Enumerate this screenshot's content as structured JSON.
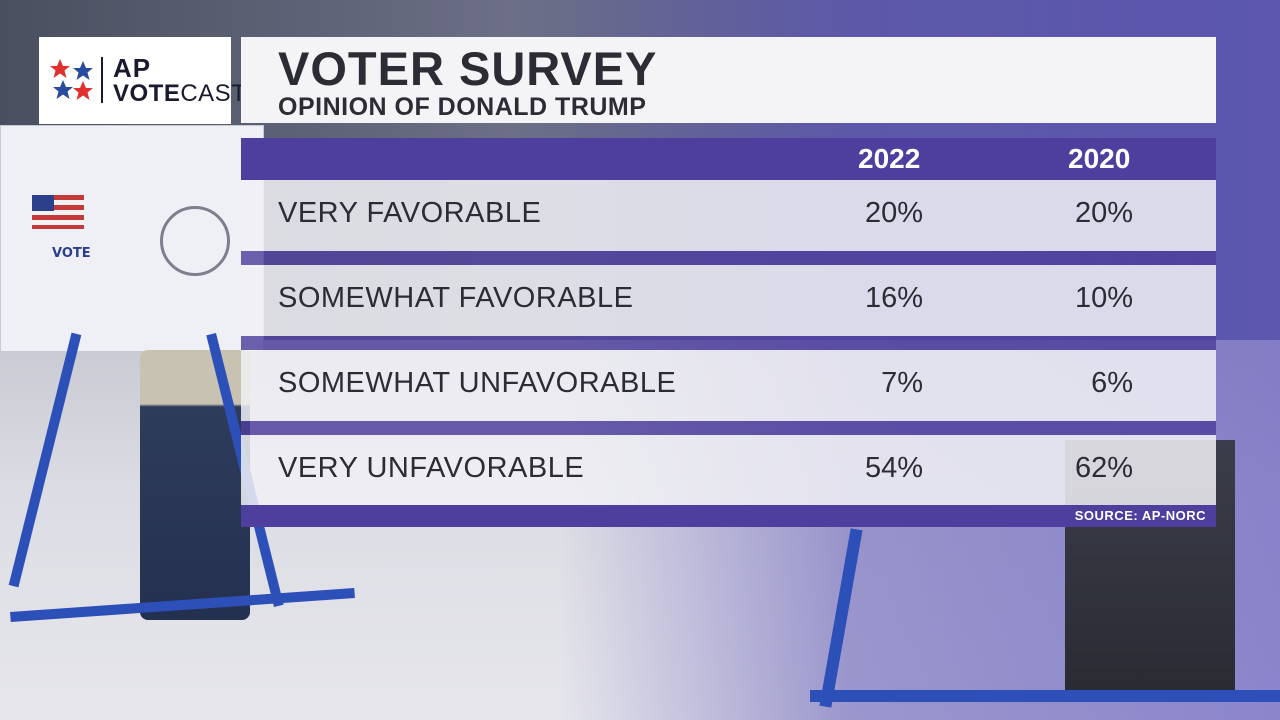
{
  "logo": {
    "line1": "AP",
    "line2_bold": "VOTE",
    "line2_rest": "CAST",
    "colors": {
      "red": "#e0312f",
      "blue": "#2a4a9e"
    }
  },
  "header": {
    "title": "VOTER SURVEY",
    "subtitle": "OPINION OF DONALD TRUMP"
  },
  "table": {
    "columns": [
      "2022",
      "2020"
    ],
    "source": "SOURCE:  AP-NORC",
    "rows": [
      {
        "label": "VERY FAVORABLE",
        "values": [
          "20%",
          "20%"
        ]
      },
      {
        "label": "SOMEWHAT FAVORABLE",
        "values": [
          "16%",
          "10%"
        ]
      },
      {
        "label": "SOMEWHAT UNFAVORABLE",
        "values": [
          "7%",
          "6%"
        ]
      },
      {
        "label": "VERY UNFAVORABLE",
        "values": [
          "54%",
          "62%"
        ]
      }
    ]
  },
  "chart_data": {
    "type": "table",
    "title": "VOTER SURVEY",
    "subtitle": "OPINION OF DONALD TRUMP",
    "categories": [
      "VERY FAVORABLE",
      "SOMEWHAT FAVORABLE",
      "SOMEWHAT UNFAVORABLE",
      "VERY UNFAVORABLE"
    ],
    "series": [
      {
        "name": "2022",
        "values": [
          20,
          16,
          7,
          54
        ]
      },
      {
        "name": "2020",
        "values": [
          20,
          10,
          6,
          62
        ]
      }
    ],
    "unit": "%",
    "source": "SOURCE:  AP-NORC"
  },
  "theme": {
    "accent": "#4e3f9e",
    "text": "#2c2c35",
    "panel": "#f4f4f6"
  }
}
